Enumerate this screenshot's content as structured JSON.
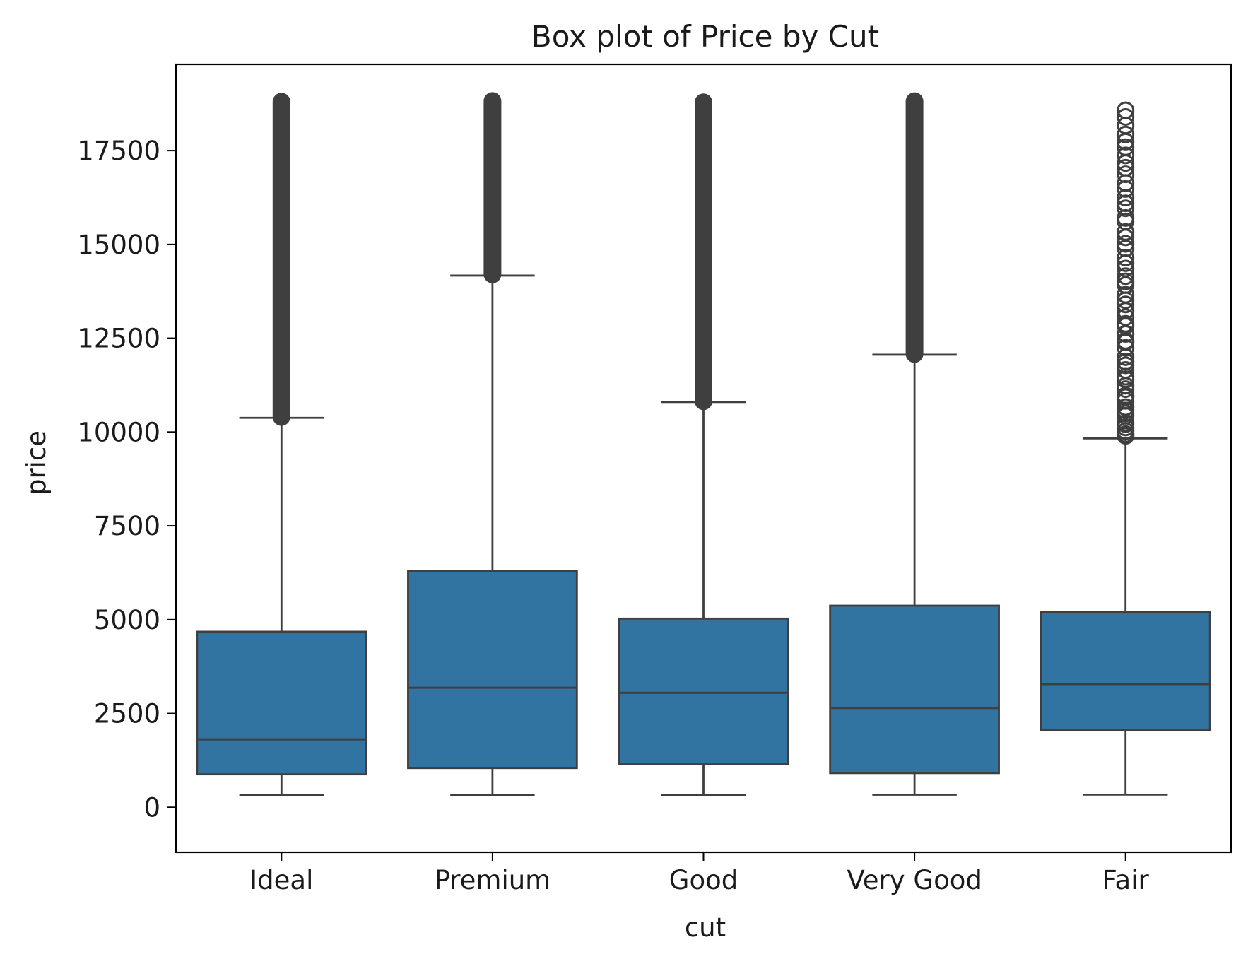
{
  "chart_data": {
    "type": "box",
    "title": "Box plot of Price by Cut",
    "xlabel": "cut",
    "ylabel": "price",
    "ylim": [
      -1200,
      19800
    ],
    "yticks": [
      0,
      2500,
      5000,
      7500,
      10000,
      12500,
      15000,
      17500
    ],
    "categories": [
      "Ideal",
      "Premium",
      "Good",
      "Very Good",
      "Fair"
    ],
    "grid": false,
    "box_color": "#3274a1",
    "edge_color": "#3f3f3f",
    "boxes": [
      {
        "category": "Ideal",
        "whisker_low": 326,
        "q1": 878,
        "median": 1810,
        "q3": 4678,
        "whisker_high": 10378,
        "outlier_min": 10400,
        "outlier_max": 18806,
        "outlier_style": "dense"
      },
      {
        "category": "Premium",
        "whisker_low": 326,
        "q1": 1046,
        "median": 3185,
        "q3": 6296,
        "whisker_high": 14170,
        "outlier_min": 14200,
        "outlier_max": 18823,
        "outlier_style": "dense"
      },
      {
        "category": "Good",
        "whisker_low": 327,
        "q1": 1145,
        "median": 3050,
        "q3": 5028,
        "whisker_high": 10800,
        "outlier_min": 10820,
        "outlier_max": 18788,
        "outlier_style": "dense"
      },
      {
        "category": "Very Good",
        "whisker_low": 336,
        "q1": 912,
        "median": 2648,
        "q3": 5373,
        "whisker_high": 12060,
        "outlier_min": 12080,
        "outlier_max": 18818,
        "outlier_style": "dense"
      },
      {
        "category": "Fair",
        "whisker_low": 337,
        "q1": 2050,
        "median": 3282,
        "q3": 5206,
        "whisker_high": 9830,
        "outlier_min": 9900,
        "outlier_max": 18574,
        "outlier_style": "sparse"
      }
    ]
  }
}
